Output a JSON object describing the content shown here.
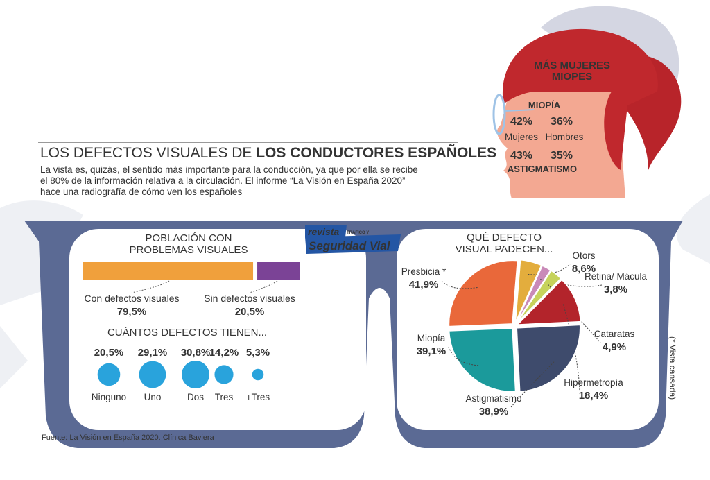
{
  "header": {
    "title_light": "LOS DEFECTOS VISUALES DE",
    "title_bold": "LOS CONDUCTORES ESPAÑOLES",
    "intro": [
      "La vista es, quizás, el sentido más importante para la conducción, ya que por ella se recibe",
      "el 80% de la información relativa a la circulación. El informe “La Visión en España 2020”",
      "hace una radiografía de cómo ven los españoles"
    ]
  },
  "logo": {
    "top": "revista",
    "small": "TRÁFICO Y",
    "main": "Seguridad Vial"
  },
  "chart_data": [
    {
      "type": "bar",
      "title": [
        "POBLACIÓN CON",
        "PROBLEMAS VISUALES"
      ],
      "categories": [
        "Con defectos visuales",
        "Sin defectos visuales"
      ],
      "values": [
        79.5,
        20.5
      ],
      "value_labels": [
        "79,5%",
        "20,5%"
      ],
      "colors": [
        "#f0a03c",
        "#7b4396"
      ]
    },
    {
      "type": "bubble",
      "title": "CUÁNTOS  DEFECTOS TIENEN...",
      "categories": [
        "Ninguno",
        "Uno",
        "Dos",
        "Tres",
        "+Tres"
      ],
      "values": [
        20.5,
        29.1,
        30.8,
        14.2,
        5.3
      ],
      "value_labels": [
        "20,5%",
        "29,1%",
        "30,8%",
        "14,2%",
        "5,3%"
      ],
      "color": "#29a3dc"
    },
    {
      "type": "pie",
      "title": [
        "QUÉ DEFECTO",
        "VISUAL PADECEN..."
      ],
      "categories": [
        "Otors",
        "Retina/ Mácula",
        "Cataratas",
        "Hipermetropía",
        "Astigmatismo",
        "Miopía",
        "Presbicia *"
      ],
      "values": [
        8.6,
        3.8,
        4.9,
        18.4,
        38.9,
        39.1,
        41.9
      ],
      "value_labels": [
        "8,6%",
        "3,8%",
        "4,9%",
        "18,4%",
        "38,9%",
        "39,1%",
        "41,9%"
      ],
      "colors": [
        "#e3ad3d",
        "#c98ab8",
        "#c6d35c",
        "#b3242b",
        "#3e4b6c",
        "#1b9a9b",
        "#e9683a"
      ]
    },
    {
      "type": "comparison",
      "title": [
        "MÁS MUJERES",
        "MIOPES"
      ],
      "categories": [
        "Mujeres",
        "Hombres"
      ],
      "series": [
        {
          "name": "MIOPÍA",
          "color": "#2c4a7a",
          "values": [
            42,
            36
          ],
          "value_labels": [
            "42%",
            "36%"
          ]
        },
        {
          "name": "ASTIGMATISMO",
          "color": "#de6f48",
          "values": [
            43,
            35
          ],
          "value_labels": [
            "43%",
            "35%"
          ]
        }
      ]
    }
  ],
  "note": "(* Vista cansada)",
  "source": "Fuente: La Visión en España 2020. Clínica Baviera"
}
